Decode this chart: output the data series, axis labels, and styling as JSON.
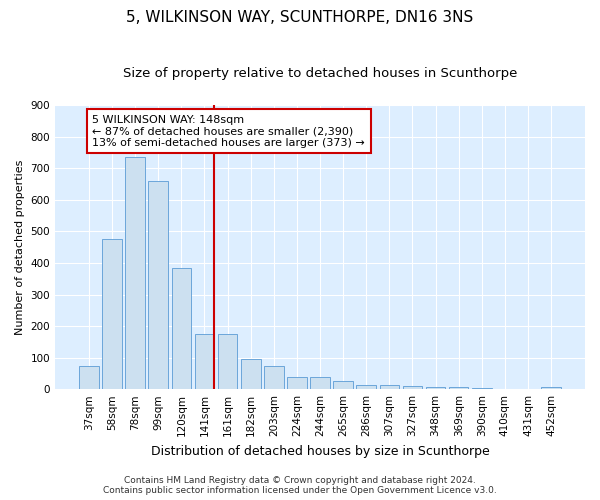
{
  "title": "5, WILKINSON WAY, SCUNTHORPE, DN16 3NS",
  "subtitle": "Size of property relative to detached houses in Scunthorpe",
  "xlabel": "Distribution of detached houses by size in Scunthorpe",
  "ylabel": "Number of detached properties",
  "categories": [
    "37sqm",
    "58sqm",
    "78sqm",
    "99sqm",
    "120sqm",
    "141sqm",
    "161sqm",
    "182sqm",
    "203sqm",
    "224sqm",
    "244sqm",
    "265sqm",
    "286sqm",
    "307sqm",
    "327sqm",
    "348sqm",
    "369sqm",
    "390sqm",
    "410sqm",
    "431sqm",
    "452sqm"
  ],
  "values": [
    75,
    475,
    735,
    660,
    385,
    175,
    175,
    97,
    75,
    40,
    40,
    25,
    12,
    12,
    10,
    8,
    8,
    5,
    0,
    0,
    8
  ],
  "bar_color": "#cce0f0",
  "bar_edge_color": "#5b9bd5",
  "highlight_line_color": "#cc0000",
  "annotation_text": "5 WILKINSON WAY: 148sqm\n← 87% of detached houses are smaller (2,390)\n13% of semi-detached houses are larger (373) →",
  "annotation_box_color": "#cc0000",
  "background_color": "#ffffff",
  "plot_bg_color": "#ddeeff",
  "ylim": [
    0,
    900
  ],
  "yticks": [
    0,
    100,
    200,
    300,
    400,
    500,
    600,
    700,
    800,
    900
  ],
  "footer1": "Contains HM Land Registry data © Crown copyright and database right 2024.",
  "footer2": "Contains public sector information licensed under the Open Government Licence v3.0.",
  "title_fontsize": 11,
  "subtitle_fontsize": 9.5,
  "xlabel_fontsize": 9,
  "ylabel_fontsize": 8,
  "tick_fontsize": 7.5,
  "annotation_fontsize": 8,
  "footer_fontsize": 6.5
}
